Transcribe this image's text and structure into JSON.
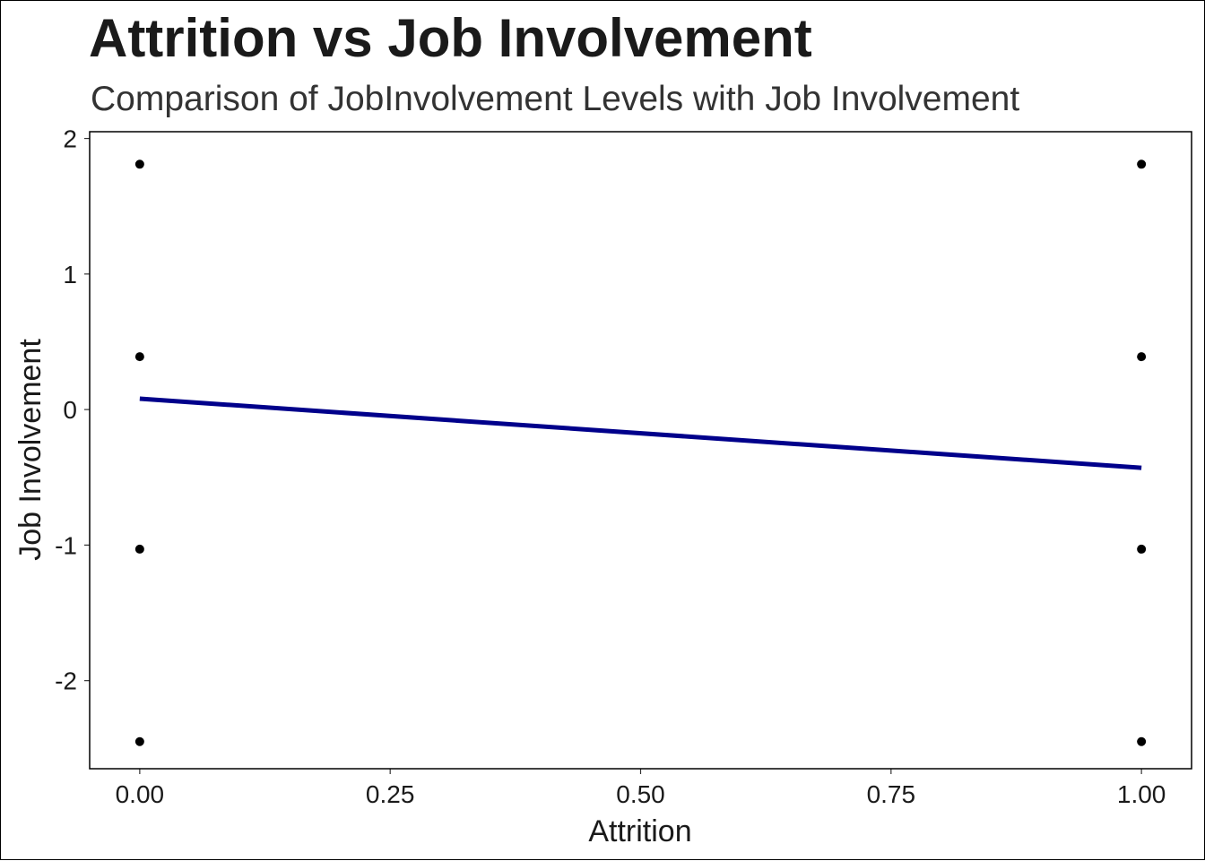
{
  "chart_data": {
    "type": "scatter",
    "title": "Attrition vs Job Involvement",
    "subtitle": "Comparison of JobInvolvement Levels with Job Involvement",
    "xlabel": "Attrition",
    "ylabel": "Job Involvement",
    "xlim": [
      -0.05,
      1.05
    ],
    "ylim": [
      -2.65,
      2.05
    ],
    "x_ticks": [
      0.0,
      0.25,
      0.5,
      0.75,
      1.0
    ],
    "x_tick_labels": [
      "0.00",
      "0.25",
      "0.50",
      "0.75",
      "1.00"
    ],
    "y_ticks": [
      2,
      1,
      0,
      -1,
      -2
    ],
    "y_tick_labels": [
      "2",
      "1",
      "0",
      "-1",
      "-2"
    ],
    "grid": false,
    "points": [
      {
        "x": 0,
        "y": 1.81
      },
      {
        "x": 0,
        "y": 0.39
      },
      {
        "x": 0,
        "y": -1.03
      },
      {
        "x": 0,
        "y": -2.45
      },
      {
        "x": 1,
        "y": 1.81
      },
      {
        "x": 1,
        "y": 0.39
      },
      {
        "x": 1,
        "y": -1.03
      },
      {
        "x": 1,
        "y": -2.45
      }
    ],
    "trend_line": {
      "method": "linear",
      "x": [
        0,
        1
      ],
      "y": [
        0.08,
        -0.43
      ]
    },
    "colors": {
      "points": "#000000",
      "trend_line": "#00008b",
      "panel_border": "#000000"
    }
  }
}
